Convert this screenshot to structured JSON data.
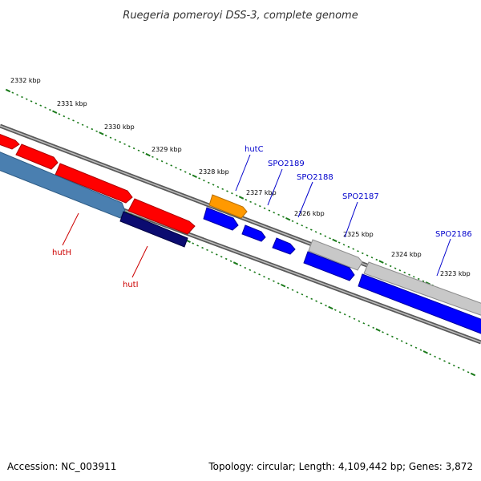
{
  "title": "Ruegeria pomeroyi DSS-3, complete genome",
  "footer": {
    "accession": "Accession: NC_003911",
    "stats": "Topology: circular; Length: 4,109,442 bp; Genes: 3,872"
  },
  "ruler": [
    {
      "label": "2332 kbp"
    },
    {
      "label": "2331 kbp"
    },
    {
      "label": "2330 kbp"
    },
    {
      "label": "2329 kbp"
    },
    {
      "label": "2328 kbp"
    },
    {
      "label": "2327 kbp"
    },
    {
      "label": "2326 kbp"
    },
    {
      "label": "2325 kbp"
    },
    {
      "label": "2324 kbp"
    },
    {
      "label": "2323 kbp"
    }
  ],
  "gene_labels": [
    {
      "name": "hutC",
      "color": "#0000cc"
    },
    {
      "name": "SPO2189",
      "color": "#0000cc"
    },
    {
      "name": "SPO2188",
      "color": "#0000cc"
    },
    {
      "name": "SPO2187",
      "color": "#0000cc"
    },
    {
      "name": "SPO2186",
      "color": "#0000cc"
    },
    {
      "name": "hutH",
      "color": "#cc0000"
    },
    {
      "name": "hutI",
      "color": "#cc0000"
    }
  ],
  "colors": {
    "backbone": "#808080",
    "tick": "#1a7a1a",
    "red_gene": "#ff0000",
    "blue_gene": "#0000ff",
    "steelblue_gene": "#4a7fb0",
    "navy_gene": "#0b0b70",
    "orange_gene": "#ff9900",
    "gray_gene": "#c8c8c8"
  }
}
